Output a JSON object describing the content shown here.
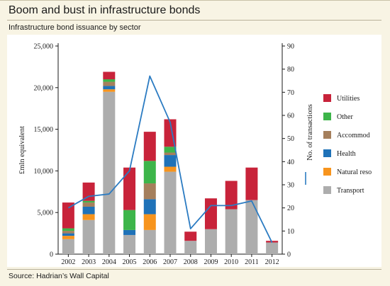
{
  "header": {
    "title": "Boom and bust in infrastructure bonds",
    "subtitle": "Infrastructure bond issuance by sector"
  },
  "footer": {
    "source": "Source: Hadrian’s Wall Capital"
  },
  "colors": {
    "background": "#f8f4e4",
    "Utilities": "#c8233a",
    "Other": "#3db54a",
    "Accommodation": "#a57f5c",
    "Health": "#1f72b8",
    "Natural resources": "#f7941d",
    "Transport": "#adadad",
    "line": "#2b7bc2"
  },
  "chart_data": {
    "type": "bar",
    "stacked": true,
    "categories": [
      "2002",
      "2003",
      "2004",
      "2005",
      "2006",
      "2007",
      "2008",
      "2009",
      "2010",
      "2011",
      "2012"
    ],
    "ylabel": "£mln equivalent",
    "ylim": [
      0,
      25000
    ],
    "yticks": [
      0,
      5000,
      10000,
      15000,
      20000,
      25000
    ],
    "ytick_labels": [
      "0",
      "5,000",
      "10,000",
      "15,000",
      "20,000",
      "25,000"
    ],
    "y2label": "No. of transactions",
    "y2lim": [
      0,
      90
    ],
    "y2ticks": [
      0,
      10,
      20,
      30,
      40,
      50,
      60,
      70,
      80,
      90
    ],
    "grid": false,
    "legend_position": "right",
    "series": [
      {
        "name": "Transport",
        "values": [
          1800,
          4100,
          19500,
          2300,
          2900,
          9900,
          1600,
          3000,
          5400,
          6500,
          1400
        ]
      },
      {
        "name": "Natural resources",
        "values": [
          400,
          700,
          300,
          0,
          1900,
          600,
          0,
          0,
          0,
          0,
          0
        ]
      },
      {
        "name": "Health",
        "values": [
          300,
          900,
          400,
          600,
          1800,
          1400,
          0,
          0,
          0,
          0,
          0
        ]
      },
      {
        "name": "Accommodation",
        "values": [
          300,
          500,
          500,
          0,
          1900,
          300,
          0,
          0,
          0,
          0,
          0
        ]
      },
      {
        "name": "Other",
        "values": [
          300,
          200,
          300,
          2400,
          2700,
          700,
          0,
          0,
          0,
          0,
          0
        ]
      },
      {
        "name": "Utilities",
        "values": [
          3100,
          2200,
          900,
          5100,
          3500,
          3300,
          1100,
          3700,
          3400,
          3900,
          200
        ]
      }
    ],
    "line": {
      "name": "No. of transactions",
      "axis": "right",
      "values": [
        20,
        25,
        26,
        36,
        77,
        57,
        11,
        21,
        21,
        23,
        5
      ]
    },
    "legend": [
      {
        "series": "Utilities",
        "label": "Utilities"
      },
      {
        "series": "Other",
        "label": "Other"
      },
      {
        "series": "Accommodation",
        "label": "Accommod"
      },
      {
        "series": "Health",
        "label": "Health"
      },
      {
        "series": "Natural resources",
        "label": "Natural reso"
      },
      {
        "series": "Transport",
        "label": "Transport"
      }
    ]
  }
}
